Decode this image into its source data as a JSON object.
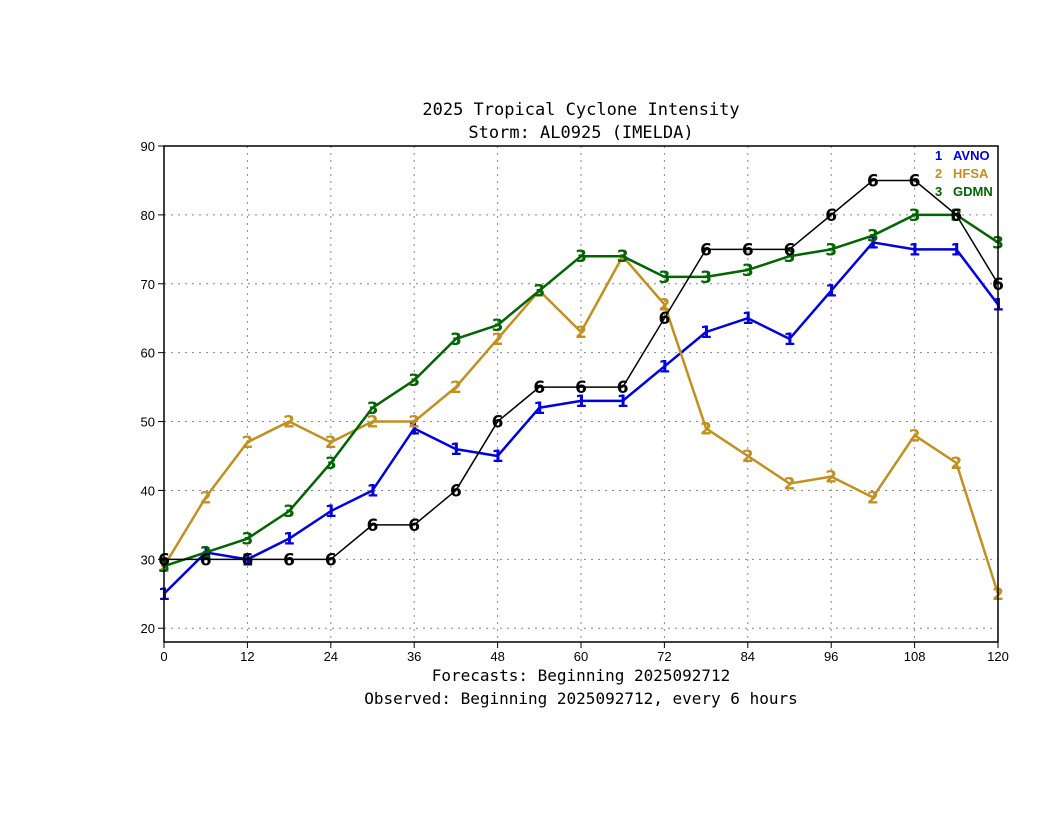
{
  "chart_data": {
    "type": "line",
    "title_line1": "2025 Tropical Cyclone Intensity",
    "title_line2": "Storm: AL0925 (IMELDA)",
    "xlabel_line1": "Forecasts: Beginning 2025092712",
    "xlabel_line2": "Observed: Beginning 2025092712, every 6 hours",
    "xlim": [
      0,
      120
    ],
    "ylim": [
      18,
      90
    ],
    "xticks": [
      0,
      12,
      24,
      36,
      48,
      60,
      72,
      84,
      96,
      108,
      120
    ],
    "yticks": [
      20,
      30,
      40,
      50,
      60,
      70,
      80,
      90
    ],
    "grid": true,
    "legend_position": "top-right",
    "series": [
      {
        "name": "AVNO",
        "marker": "1",
        "color": "#0000dd",
        "x": [
          0,
          6,
          12,
          18,
          24,
          30,
          36,
          42,
          48,
          54,
          60,
          66,
          72,
          78,
          84,
          90,
          96,
          102,
          108,
          114,
          120
        ],
        "values": [
          25,
          31,
          30,
          33,
          37,
          40,
          49,
          46,
          45,
          52,
          53,
          53,
          58,
          63,
          65,
          62,
          69,
          76,
          75,
          75,
          67
        ]
      },
      {
        "name": "HFSA",
        "marker": "2",
        "color": "#c09020",
        "x": [
          0,
          6,
          12,
          18,
          24,
          30,
          36,
          42,
          48,
          54,
          60,
          66,
          72,
          78,
          84,
          90,
          96,
          102,
          108,
          114,
          120
        ],
        "values": [
          29,
          39,
          47,
          50,
          47,
          50,
          50,
          55,
          62,
          69,
          63,
          74,
          67,
          49,
          45,
          41,
          42,
          39,
          48,
          44,
          25
        ]
      },
      {
        "name": "GDMN",
        "marker": "3",
        "color": "#006400",
        "x": [
          0,
          6,
          12,
          18,
          24,
          30,
          36,
          42,
          48,
          54,
          60,
          66,
          72,
          78,
          84,
          90,
          96,
          102,
          108,
          114,
          120
        ],
        "values": [
          29,
          31,
          33,
          37,
          44,
          52,
          56,
          62,
          64,
          69,
          74,
          74,
          71,
          71,
          72,
          74,
          75,
          77,
          80,
          80,
          76
        ]
      },
      {
        "name": "Observed",
        "marker": "6",
        "color": "#000000",
        "in_legend": false,
        "x": [
          0,
          6,
          12,
          18,
          24,
          30,
          36,
          42,
          48,
          54,
          60,
          66,
          72,
          78,
          84,
          90,
          96,
          102,
          108,
          114,
          120
        ],
        "values": [
          30,
          30,
          30,
          30,
          30,
          35,
          35,
          40,
          50,
          55,
          55,
          55,
          65,
          75,
          75,
          75,
          80,
          85,
          85,
          80,
          70
        ]
      }
    ]
  }
}
